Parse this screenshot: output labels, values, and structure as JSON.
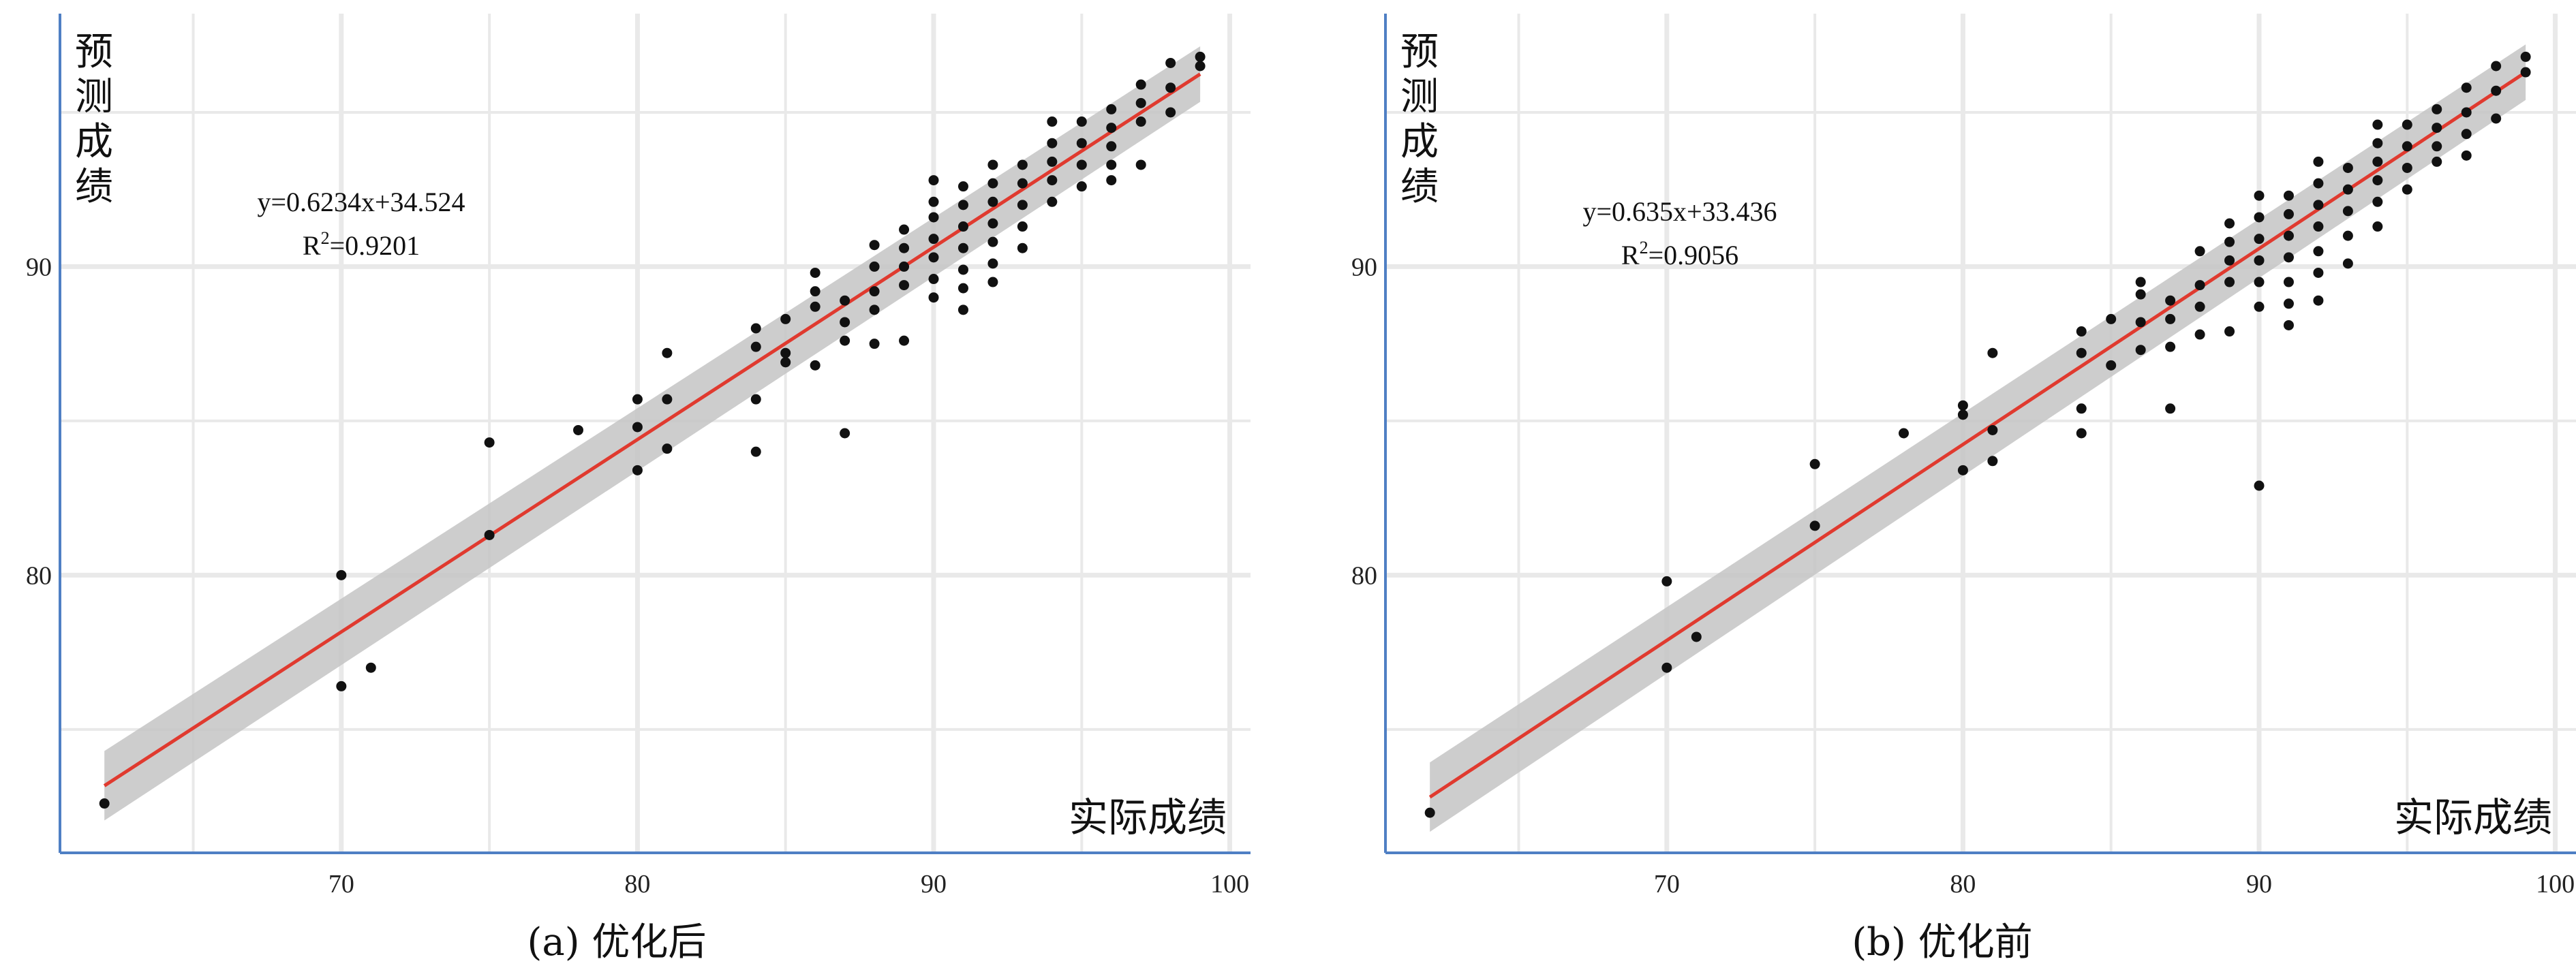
{
  "colors": {
    "axis": "#4f7fc4",
    "grid": "#e9e9e9",
    "fit_line": "#e03a2f",
    "confidence_band": "#c4c4c4",
    "points": "#111111"
  },
  "chart_data": [
    {
      "type": "scatter",
      "caption": "(a) 优化后",
      "ylabel": "预测成绩",
      "xlabel": "实际成绩",
      "equation": "y=0.6234x+34.524",
      "r2_label": "R",
      "r2_exponent": "2",
      "r2_value": "=0.9201",
      "xlim": [
        60.5,
        100.7
      ],
      "ylim": [
        71,
        98.2
      ],
      "xticks": [
        70,
        80,
        90,
        100
      ],
      "yticks": [
        80,
        90
      ],
      "grid": true,
      "fit": {
        "slope": 0.6234,
        "intercept": 34.524,
        "x_range": [
          62,
          99
        ],
        "band": 0.55
      },
      "points": [
        [
          62,
          72.6
        ],
        [
          70,
          80
        ],
        [
          70,
          76.4
        ],
        [
          71,
          77
        ],
        [
          75,
          84.3
        ],
        [
          75,
          81.3
        ],
        [
          78,
          84.7
        ],
        [
          80,
          85.7
        ],
        [
          80,
          84.8
        ],
        [
          80,
          83.4
        ],
        [
          81,
          87.2
        ],
        [
          81,
          85.7
        ],
        [
          81,
          84.1
        ],
        [
          84,
          88
        ],
        [
          84,
          87.4
        ],
        [
          84,
          85.7
        ],
        [
          84,
          84
        ],
        [
          85,
          88.3
        ],
        [
          85,
          87.2
        ],
        [
          85,
          86.9
        ],
        [
          86,
          89.8
        ],
        [
          86,
          89.2
        ],
        [
          86,
          88.7
        ],
        [
          86,
          86.8
        ],
        [
          87,
          88.9
        ],
        [
          87,
          88.2
        ],
        [
          87,
          87.6
        ],
        [
          87,
          84.6
        ],
        [
          88,
          90.7
        ],
        [
          88,
          90
        ],
        [
          88,
          89.2
        ],
        [
          88,
          88.6
        ],
        [
          88,
          87.5
        ],
        [
          89,
          91.2
        ],
        [
          89,
          90.6
        ],
        [
          89,
          90
        ],
        [
          89,
          89.4
        ],
        [
          89,
          87.6
        ],
        [
          90,
          92.8
        ],
        [
          90,
          92.1
        ],
        [
          90,
          91.6
        ],
        [
          90,
          90.9
        ],
        [
          90,
          90.3
        ],
        [
          90,
          89.6
        ],
        [
          90,
          89
        ],
        [
          91,
          92.6
        ],
        [
          91,
          92
        ],
        [
          91,
          91.3
        ],
        [
          91,
          90.6
        ],
        [
          91,
          89.9
        ],
        [
          91,
          89.3
        ],
        [
          91,
          88.6
        ],
        [
          92,
          93.3
        ],
        [
          92,
          92.7
        ],
        [
          92,
          92.1
        ],
        [
          92,
          91.4
        ],
        [
          92,
          90.8
        ],
        [
          92,
          90.1
        ],
        [
          92,
          89.5
        ],
        [
          93,
          93.3
        ],
        [
          93,
          92.7
        ],
        [
          93,
          92
        ],
        [
          93,
          91.3
        ],
        [
          93,
          90.6
        ],
        [
          94,
          94.7
        ],
        [
          94,
          94
        ],
        [
          94,
          93.4
        ],
        [
          94,
          92.8
        ],
        [
          94,
          92.1
        ],
        [
          95,
          94.7
        ],
        [
          95,
          94
        ],
        [
          95,
          93.3
        ],
        [
          95,
          92.6
        ],
        [
          96,
          95.1
        ],
        [
          96,
          94.5
        ],
        [
          96,
          93.9
        ],
        [
          96,
          93.3
        ],
        [
          96,
          92.8
        ],
        [
          97,
          95.9
        ],
        [
          97,
          95.3
        ],
        [
          97,
          94.7
        ],
        [
          97,
          93.3
        ],
        [
          98,
          96.6
        ],
        [
          98,
          95.8
        ],
        [
          98,
          95
        ],
        [
          99,
          96.8
        ],
        [
          99,
          96.5
        ]
      ]
    },
    {
      "type": "scatter",
      "caption": "(b) 优化前",
      "ylabel": "预测成绩",
      "xlabel": "实际成绩",
      "equation": "y=0.635x+33.436",
      "r2_label": "R",
      "r2_exponent": "2",
      "r2_value": "=0.9056",
      "xlim": [
        60.5,
        100.7
      ],
      "ylim": [
        71,
        98.2
      ],
      "xticks": [
        70,
        80,
        90,
        100
      ],
      "yticks": [
        80,
        90
      ],
      "grid": true,
      "fit": {
        "slope": 0.635,
        "intercept": 33.436,
        "x_range": [
          62,
          99
        ],
        "band": 0.55
      },
      "points": [
        [
          62,
          72.3
        ],
        [
          70,
          79.8
        ],
        [
          70,
          77
        ],
        [
          71,
          78
        ],
        [
          75,
          83.6
        ],
        [
          75,
          81.6
        ],
        [
          78,
          84.6
        ],
        [
          80,
          85.5
        ],
        [
          80,
          85.2
        ],
        [
          80,
          83.4
        ],
        [
          81,
          87.2
        ],
        [
          81,
          84.7
        ],
        [
          81,
          83.7
        ],
        [
          84,
          87.9
        ],
        [
          84,
          87.2
        ],
        [
          84,
          85.4
        ],
        [
          84,
          84.6
        ],
        [
          85,
          88.3
        ],
        [
          85,
          86.8
        ],
        [
          86,
          89.5
        ],
        [
          86,
          89.1
        ],
        [
          86,
          88.2
        ],
        [
          86,
          87.3
        ],
        [
          87,
          88.9
        ],
        [
          87,
          88.3
        ],
        [
          87,
          87.4
        ],
        [
          87,
          85.4
        ],
        [
          88,
          90.5
        ],
        [
          88,
          89.4
        ],
        [
          88,
          88.7
        ],
        [
          88,
          87.8
        ],
        [
          89,
          91.4
        ],
        [
          89,
          90.8
        ],
        [
          89,
          90.2
        ],
        [
          89,
          89.5
        ],
        [
          89,
          87.9
        ],
        [
          90,
          92.3
        ],
        [
          90,
          91.6
        ],
        [
          90,
          90.9
        ],
        [
          90,
          90.2
        ],
        [
          90,
          89.5
        ],
        [
          90,
          88.7
        ],
        [
          90,
          82.9
        ],
        [
          91,
          92.3
        ],
        [
          91,
          91.7
        ],
        [
          91,
          91
        ],
        [
          91,
          90.3
        ],
        [
          91,
          89.5
        ],
        [
          91,
          88.8
        ],
        [
          91,
          88.1
        ],
        [
          92,
          93.4
        ],
        [
          92,
          92.7
        ],
        [
          92,
          92
        ],
        [
          92,
          91.3
        ],
        [
          92,
          90.5
        ],
        [
          92,
          89.8
        ],
        [
          92,
          88.9
        ],
        [
          93,
          93.2
        ],
        [
          93,
          92.5
        ],
        [
          93,
          91.8
        ],
        [
          93,
          91
        ],
        [
          93,
          90.1
        ],
        [
          94,
          94.6
        ],
        [
          94,
          94
        ],
        [
          94,
          93.4
        ],
        [
          94,
          92.8
        ],
        [
          94,
          92.1
        ],
        [
          94,
          91.3
        ],
        [
          95,
          94.6
        ],
        [
          95,
          93.9
        ],
        [
          95,
          93.2
        ],
        [
          95,
          92.5
        ],
        [
          96,
          95.1
        ],
        [
          96,
          94.5
        ],
        [
          96,
          93.9
        ],
        [
          96,
          93.4
        ],
        [
          97,
          95.8
        ],
        [
          97,
          95
        ],
        [
          97,
          94.3
        ],
        [
          97,
          93.6
        ],
        [
          98,
          96.5
        ],
        [
          98,
          95.7
        ],
        [
          98,
          94.8
        ],
        [
          99,
          96.8
        ],
        [
          99,
          96.3
        ]
      ]
    }
  ]
}
